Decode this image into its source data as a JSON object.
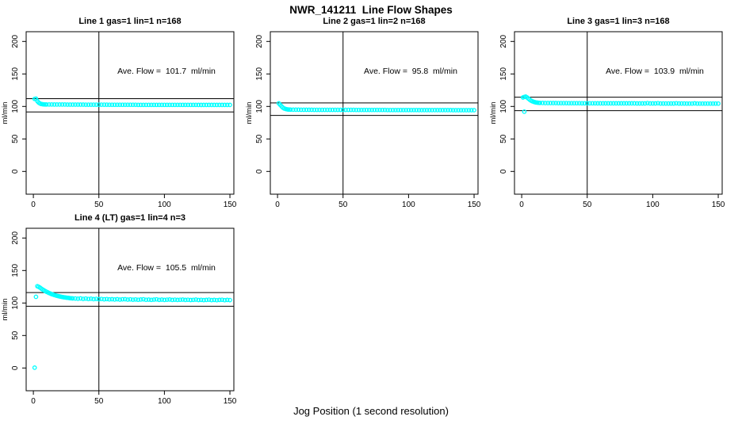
{
  "title": "NWR_141211  Line Flow Shapes",
  "xlabel": "Jog Position (1 second resolution)",
  "point_color": "#00ffff",
  "axis_color": "#000000",
  "chart_data": [
    {
      "type": "scatter",
      "title": "Line 1 gas=1 lin=1 n=168",
      "annotation": "Ave. Flow =  101.7  ml/min",
      "ave_flow_ml_min": 101.7,
      "ylabel": "ml/min",
      "xlim": [
        -5.5,
        153
      ],
      "ylim": [
        -35,
        215
      ],
      "xticks": [
        0,
        50,
        100,
        150
      ],
      "yticks": [
        0,
        50,
        100,
        150,
        200
      ],
      "vline_x": 50,
      "hlines": [
        91.5,
        111.9
      ],
      "grid": false,
      "legend": "none",
      "points": [
        [
          1,
          111.6
        ],
        [
          2,
          112.0
        ],
        [
          3,
          108.2
        ],
        [
          4,
          106.0
        ],
        [
          5,
          104.6
        ],
        [
          6,
          103.8
        ],
        [
          7,
          103.4
        ],
        [
          8,
          103.2
        ],
        [
          9,
          103.1
        ],
        [
          10,
          103.0
        ],
        [
          12,
          103.0
        ],
        [
          14,
          103.0
        ],
        [
          16,
          102.9
        ],
        [
          18,
          102.9
        ],
        [
          20,
          102.9
        ],
        [
          22,
          102.9
        ],
        [
          24,
          102.9
        ],
        [
          26,
          102.8
        ],
        [
          28,
          102.8
        ],
        [
          30,
          102.8
        ],
        [
          32,
          102.8
        ],
        [
          34,
          102.8
        ],
        [
          36,
          102.8
        ],
        [
          38,
          102.8
        ],
        [
          40,
          102.7
        ],
        [
          42,
          102.7
        ],
        [
          44,
          102.7
        ],
        [
          46,
          102.7
        ],
        [
          48,
          102.7
        ],
        [
          50,
          102.7
        ],
        [
          52,
          102.7
        ],
        [
          54,
          102.7
        ],
        [
          56,
          102.7
        ],
        [
          58,
          102.6
        ],
        [
          60,
          102.6
        ],
        [
          62,
          102.6
        ],
        [
          64,
          102.6
        ],
        [
          66,
          102.6
        ],
        [
          68,
          102.6
        ],
        [
          70,
          102.6
        ],
        [
          72,
          102.6
        ],
        [
          74,
          102.6
        ],
        [
          76,
          102.6
        ],
        [
          78,
          102.6
        ],
        [
          80,
          102.5
        ],
        [
          82,
          102.5
        ],
        [
          84,
          102.5
        ],
        [
          86,
          102.5
        ],
        [
          88,
          102.5
        ],
        [
          90,
          102.5
        ],
        [
          92,
          102.5
        ],
        [
          94,
          102.5
        ],
        [
          96,
          102.5
        ],
        [
          98,
          102.5
        ],
        [
          100,
          102.5
        ],
        [
          102,
          102.5
        ],
        [
          104,
          102.4
        ],
        [
          106,
          102.4
        ],
        [
          108,
          102.4
        ],
        [
          110,
          102.4
        ],
        [
          112,
          102.4
        ],
        [
          114,
          102.4
        ],
        [
          116,
          102.4
        ],
        [
          118,
          102.4
        ],
        [
          120,
          102.4
        ],
        [
          122,
          102.4
        ],
        [
          124,
          102.4
        ],
        [
          126,
          102.3
        ],
        [
          128,
          102.3
        ],
        [
          130,
          102.3
        ],
        [
          132,
          102.3
        ],
        [
          134,
          102.3
        ],
        [
          136,
          102.3
        ],
        [
          138,
          102.3
        ],
        [
          140,
          102.3
        ],
        [
          142,
          102.3
        ],
        [
          144,
          102.3
        ],
        [
          146,
          102.3
        ],
        [
          148,
          102.3
        ],
        [
          150,
          102.3
        ]
      ]
    },
    {
      "type": "scatter",
      "title": "Line 2 gas=1 lin=2 n=168",
      "annotation": "Ave. Flow =  95.8  ml/min",
      "ave_flow_ml_min": 95.8,
      "ylabel": "ml/min",
      "xlim": [
        -5.5,
        153
      ],
      "ylim": [
        -35,
        215
      ],
      "xticks": [
        0,
        50,
        100,
        150
      ],
      "yticks": [
        0,
        50,
        100,
        150,
        200
      ],
      "vline_x": 50,
      "hlines": [
        86.2,
        105.4
      ],
      "grid": false,
      "legend": "none",
      "points": [
        [
          1,
          104.8
        ],
        [
          2,
          102.6
        ],
        [
          3,
          100.2
        ],
        [
          4,
          98.3
        ],
        [
          5,
          97.0
        ],
        [
          6,
          96.2
        ],
        [
          7,
          95.7
        ],
        [
          8,
          95.4
        ],
        [
          9,
          95.2
        ],
        [
          10,
          95.1
        ],
        [
          12,
          95.0
        ],
        [
          14,
          95.0
        ],
        [
          16,
          95.0
        ],
        [
          18,
          94.9
        ],
        [
          20,
          94.9
        ],
        [
          22,
          94.9
        ],
        [
          24,
          94.9
        ],
        [
          26,
          94.9
        ],
        [
          28,
          94.8
        ],
        [
          30,
          94.8
        ],
        [
          32,
          94.8
        ],
        [
          34,
          94.8
        ],
        [
          36,
          94.8
        ],
        [
          38,
          94.8
        ],
        [
          40,
          94.8
        ],
        [
          42,
          94.7
        ],
        [
          44,
          94.7
        ],
        [
          46,
          94.7
        ],
        [
          48,
          94.7
        ],
        [
          50,
          94.7
        ],
        [
          52,
          94.7
        ],
        [
          54,
          94.7
        ],
        [
          56,
          94.7
        ],
        [
          58,
          94.7
        ],
        [
          60,
          94.6
        ],
        [
          62,
          94.6
        ],
        [
          64,
          94.6
        ],
        [
          66,
          94.6
        ],
        [
          68,
          94.6
        ],
        [
          70,
          94.6
        ],
        [
          72,
          94.6
        ],
        [
          74,
          94.6
        ],
        [
          76,
          94.6
        ],
        [
          78,
          94.6
        ],
        [
          80,
          94.6
        ],
        [
          82,
          94.6
        ],
        [
          84,
          94.5
        ],
        [
          86,
          94.5
        ],
        [
          88,
          94.5
        ],
        [
          90,
          94.5
        ],
        [
          92,
          94.5
        ],
        [
          94,
          94.5
        ],
        [
          96,
          94.5
        ],
        [
          98,
          94.5
        ],
        [
          100,
          94.5
        ],
        [
          102,
          94.5
        ],
        [
          104,
          94.5
        ],
        [
          106,
          94.5
        ],
        [
          108,
          94.4
        ],
        [
          110,
          94.4
        ],
        [
          112,
          94.4
        ],
        [
          114,
          94.4
        ],
        [
          116,
          94.4
        ],
        [
          118,
          94.4
        ],
        [
          120,
          94.4
        ],
        [
          122,
          94.4
        ],
        [
          124,
          94.4
        ],
        [
          126,
          94.4
        ],
        [
          128,
          94.4
        ],
        [
          130,
          94.4
        ],
        [
          132,
          94.4
        ],
        [
          134,
          94.3
        ],
        [
          136,
          94.3
        ],
        [
          138,
          94.3
        ],
        [
          140,
          94.3
        ],
        [
          142,
          94.3
        ],
        [
          144,
          94.3
        ],
        [
          146,
          94.3
        ],
        [
          148,
          94.3
        ],
        [
          150,
          94.3
        ]
      ]
    },
    {
      "type": "scatter",
      "title": "Line 3 gas=1 lin=3 n=168",
      "annotation": "Ave. Flow =  103.9  ml/min",
      "ave_flow_ml_min": 103.9,
      "ylabel": "ml/min",
      "xlim": [
        -5.5,
        153
      ],
      "ylim": [
        -35,
        215
      ],
      "xticks": [
        0,
        50,
        100,
        150
      ],
      "yticks": [
        0,
        50,
        100,
        150,
        200
      ],
      "vline_x": 50,
      "hlines": [
        93.5,
        114.3
      ],
      "grid": false,
      "legend": "none",
      "points": [
        [
          1,
          113.8
        ],
        [
          2,
          92.0
        ],
        [
          2,
          114.6
        ],
        [
          3,
          115.1
        ],
        [
          4,
          114.0
        ],
        [
          5,
          112.3
        ],
        [
          6,
          110.6
        ],
        [
          7,
          109.2
        ],
        [
          8,
          108.1
        ],
        [
          9,
          107.2
        ],
        [
          10,
          106.6
        ],
        [
          11,
          106.1
        ],
        [
          12,
          105.8
        ],
        [
          13,
          105.6
        ],
        [
          14,
          105.5
        ],
        [
          16,
          105.4
        ],
        [
          18,
          105.3
        ],
        [
          20,
          105.3
        ],
        [
          22,
          105.2
        ],
        [
          24,
          105.2
        ],
        [
          26,
          105.2
        ],
        [
          28,
          105.1
        ],
        [
          30,
          105.1
        ],
        [
          32,
          105.1
        ],
        [
          34,
          105.1
        ],
        [
          36,
          105.0
        ],
        [
          38,
          105.0
        ],
        [
          40,
          105.0
        ],
        [
          42,
          105.0
        ],
        [
          44,
          105.0
        ],
        [
          46,
          104.9
        ],
        [
          48,
          104.9
        ],
        [
          50,
          104.9
        ],
        [
          52,
          104.9
        ],
        [
          54,
          104.9
        ],
        [
          56,
          104.9
        ],
        [
          58,
          104.8
        ],
        [
          60,
          104.8
        ],
        [
          62,
          104.8
        ],
        [
          64,
          104.8
        ],
        [
          66,
          104.8
        ],
        [
          68,
          104.8
        ],
        [
          70,
          104.8
        ],
        [
          72,
          104.7
        ],
        [
          74,
          104.7
        ],
        [
          76,
          104.7
        ],
        [
          78,
          104.7
        ],
        [
          80,
          104.7
        ],
        [
          82,
          104.7
        ],
        [
          84,
          104.7
        ],
        [
          86,
          104.7
        ],
        [
          88,
          104.6
        ],
        [
          90,
          104.6
        ],
        [
          92,
          104.6
        ],
        [
          94,
          104.6
        ],
        [
          96,
          105.1
        ],
        [
          98,
          104.6
        ],
        [
          100,
          104.6
        ],
        [
          102,
          104.6
        ],
        [
          104,
          105.0
        ],
        [
          106,
          104.5
        ],
        [
          108,
          104.5
        ],
        [
          110,
          104.5
        ],
        [
          112,
          104.5
        ],
        [
          114,
          104.5
        ],
        [
          116,
          104.5
        ],
        [
          118,
          104.9
        ],
        [
          120,
          104.5
        ],
        [
          122,
          104.5
        ],
        [
          124,
          104.5
        ],
        [
          126,
          104.4
        ],
        [
          128,
          104.4
        ],
        [
          130,
          104.4
        ],
        [
          132,
          104.8
        ],
        [
          134,
          104.4
        ],
        [
          136,
          104.4
        ],
        [
          138,
          104.4
        ],
        [
          140,
          104.4
        ],
        [
          142,
          104.4
        ],
        [
          144,
          104.4
        ],
        [
          146,
          104.4
        ],
        [
          148,
          104.4
        ],
        [
          150,
          104.4
        ]
      ]
    },
    {
      "type": "scatter",
      "title": "Line 4 (LT) gas=1 lin=4 n=3",
      "annotation": "Ave. Flow =  105.5  ml/min",
      "ave_flow_ml_min": 105.5,
      "ylabel": "ml/min",
      "xlim": [
        -5.5,
        153
      ],
      "ylim": [
        -35,
        215
      ],
      "xticks": [
        0,
        50,
        100,
        150
      ],
      "yticks": [
        0,
        50,
        100,
        150,
        200
      ],
      "vline_x": 50,
      "hlines": [
        95.0,
        116.1
      ],
      "grid": false,
      "legend": "none",
      "points": [
        [
          1,
          0.5
        ],
        [
          2,
          109.5
        ],
        [
          3,
          125.8
        ],
        [
          4,
          124.9
        ],
        [
          5,
          123.6
        ],
        [
          6,
          122.2
        ],
        [
          7,
          120.9
        ],
        [
          8,
          119.6
        ],
        [
          9,
          118.4
        ],
        [
          10,
          117.3
        ],
        [
          11,
          116.3
        ],
        [
          12,
          115.4
        ],
        [
          13,
          114.5
        ],
        [
          14,
          113.7
        ],
        [
          15,
          113.0
        ],
        [
          16,
          112.3
        ],
        [
          17,
          111.7
        ],
        [
          18,
          111.1
        ],
        [
          19,
          110.6
        ],
        [
          20,
          110.1
        ],
        [
          21,
          109.7
        ],
        [
          22,
          109.3
        ],
        [
          23,
          108.9
        ],
        [
          24,
          108.6
        ],
        [
          25,
          108.3
        ],
        [
          26,
          108.0
        ],
        [
          27,
          107.8
        ],
        [
          28,
          107.5
        ],
        [
          29,
          107.3
        ],
        [
          30,
          107.1
        ],
        [
          32,
          107.0
        ],
        [
          34,
          106.6
        ],
        [
          36,
          107.1
        ],
        [
          38,
          106.4
        ],
        [
          40,
          106.8
        ],
        [
          42,
          106.2
        ],
        [
          44,
          106.6
        ],
        [
          46,
          106.0
        ],
        [
          48,
          106.4
        ],
        [
          50,
          105.9
        ],
        [
          52,
          106.2
        ],
        [
          54,
          105.7
        ],
        [
          56,
          106.1
        ],
        [
          58,
          105.6
        ],
        [
          60,
          105.9
        ],
        [
          62,
          105.4
        ],
        [
          64,
          105.8
        ],
        [
          66,
          105.3
        ],
        [
          68,
          105.7
        ],
        [
          70,
          105.9
        ],
        [
          72,
          105.2
        ],
        [
          74,
          105.6
        ],
        [
          76,
          105.1
        ],
        [
          78,
          105.5
        ],
        [
          80,
          105.0
        ],
        [
          82,
          105.4
        ],
        [
          84,
          105.7
        ],
        [
          86,
          105.0
        ],
        [
          88,
          105.3
        ],
        [
          90,
          104.9
        ],
        [
          92,
          105.2
        ],
        [
          94,
          105.6
        ],
        [
          96,
          104.9
        ],
        [
          98,
          105.2
        ],
        [
          100,
          104.8
        ],
        [
          102,
          105.1
        ],
        [
          104,
          105.4
        ],
        [
          106,
          104.8
        ],
        [
          108,
          105.1
        ],
        [
          110,
          104.7
        ],
        [
          112,
          105.0
        ],
        [
          114,
          105.3
        ],
        [
          116,
          104.7
        ],
        [
          118,
          105.0
        ],
        [
          120,
          104.6
        ],
        [
          122,
          104.9
        ],
        [
          124,
          105.2
        ],
        [
          126,
          104.6
        ],
        [
          128,
          104.9
        ],
        [
          130,
          104.5
        ],
        [
          132,
          104.8
        ],
        [
          134,
          105.1
        ],
        [
          136,
          104.5
        ],
        [
          138,
          104.8
        ],
        [
          140,
          104.4
        ],
        [
          142,
          104.7
        ],
        [
          144,
          105.0
        ],
        [
          146,
          104.4
        ],
        [
          148,
          104.7
        ],
        [
          150,
          104.5
        ]
      ]
    }
  ]
}
